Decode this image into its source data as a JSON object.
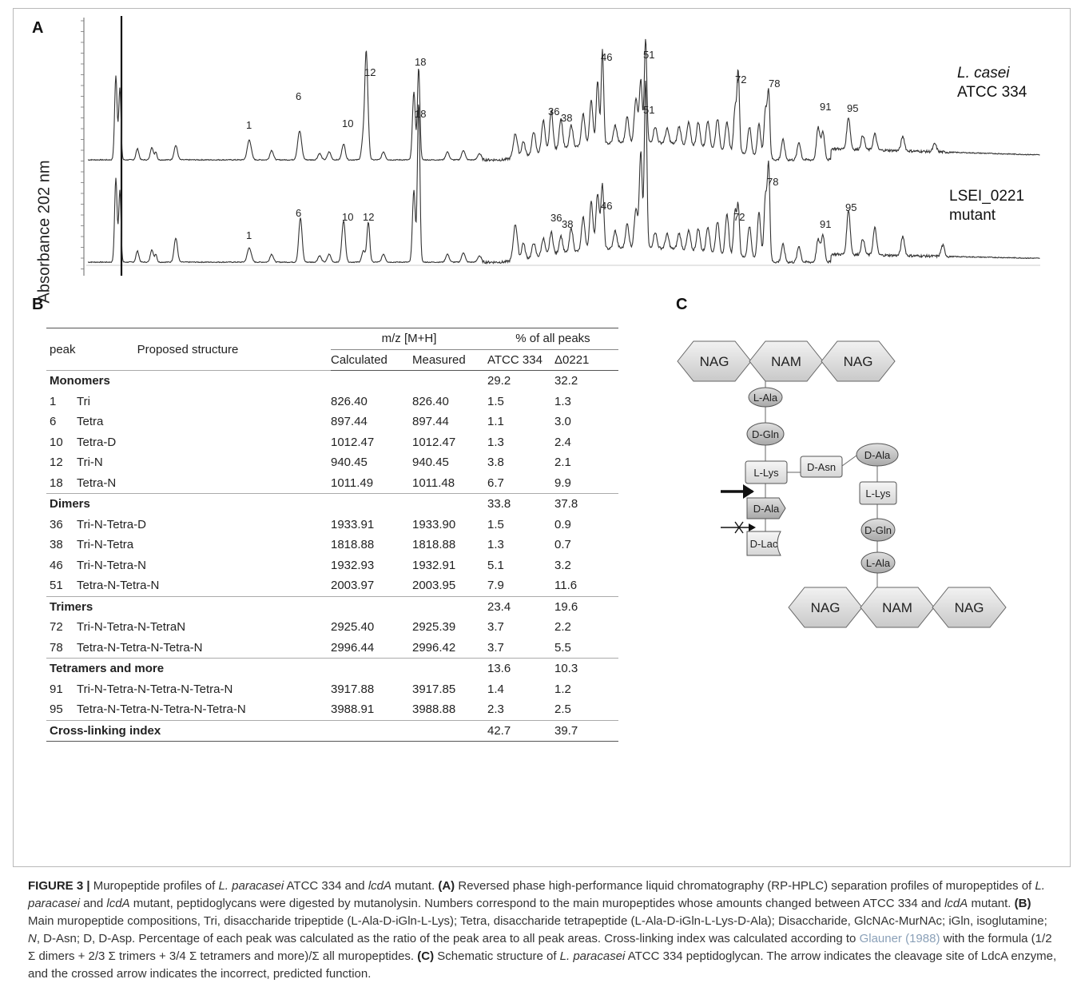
{
  "panels": {
    "a": "A",
    "b": "B",
    "c": "C"
  },
  "chart_data": {
    "type": "line",
    "ylabel": "Absorbance 202 nm",
    "series": [
      {
        "name": "L. casei ATCC 334",
        "name_line1": "L. casei",
        "name_line2": "ATCC 334",
        "peaks": [
          "1",
          "6",
          "10",
          "12",
          "18",
          "36",
          "38",
          "46",
          "51",
          "72",
          "78",
          "91",
          "95"
        ]
      },
      {
        "name": "LSEI_0221 mutant",
        "name_line1": "LSEI_0221",
        "name_line2": "mutant",
        "peaks": [
          "1",
          "6",
          "10",
          "12",
          "18",
          "36",
          "38",
          "46",
          "51",
          "72",
          "78",
          "91",
          "95"
        ]
      }
    ]
  },
  "table": {
    "headers": {
      "peak": "peak",
      "structure": "Proposed structure",
      "mz": "m/z [M+H]",
      "pct": "% of all peaks",
      "calc": "Calculated",
      "meas": "Measured",
      "atcc": "ATCC 334",
      "mut": "Δ0221"
    },
    "rows": [
      {
        "type": "section",
        "label": "Monomers",
        "atcc": "29.2",
        "mut": "32.2"
      },
      {
        "type": "row",
        "peak": "1",
        "structure": "Tri",
        "calc": "826.40",
        "meas": "826.40",
        "atcc": "1.5",
        "mut": "1.3"
      },
      {
        "type": "row",
        "peak": "6",
        "structure": "Tetra",
        "calc": "897.44",
        "meas": "897.44",
        "atcc": "1.1",
        "mut": "3.0"
      },
      {
        "type": "row",
        "peak": "10",
        "structure": "Tetra-D",
        "calc": "1012.47",
        "meas": "1012.47",
        "atcc": "1.3",
        "mut": "2.4"
      },
      {
        "type": "row",
        "peak": "12",
        "structure": "Tri-N",
        "calc": "940.45",
        "meas": "940.45",
        "atcc": "3.8",
        "mut": "2.1"
      },
      {
        "type": "row",
        "peak": "18",
        "structure": "Tetra-N",
        "calc": "1011.49",
        "meas": "1011.48",
        "atcc": "6.7",
        "mut": "9.9"
      },
      {
        "type": "section",
        "label": "Dimers",
        "atcc": "33.8",
        "mut": "37.8"
      },
      {
        "type": "row",
        "peak": "36",
        "structure": "Tri-N-Tetra-D",
        "calc": "1933.91",
        "meas": "1933.90",
        "atcc": "1.5",
        "mut": "0.9"
      },
      {
        "type": "row",
        "peak": "38",
        "structure": "Tri-N-Tetra",
        "calc": "1818.88",
        "meas": "1818.88",
        "atcc": "1.3",
        "mut": "0.7"
      },
      {
        "type": "row",
        "peak": "46",
        "structure": "Tri-N-Tetra-N",
        "calc": "1932.93",
        "meas": "1932.91",
        "atcc": "5.1",
        "mut": "3.2"
      },
      {
        "type": "row",
        "peak": "51",
        "structure": "Tetra-N-Tetra-N",
        "calc": "2003.97",
        "meas": "2003.95",
        "atcc": "7.9",
        "mut": "11.6"
      },
      {
        "type": "section",
        "label": "Trimers",
        "atcc": "23.4",
        "mut": "19.6"
      },
      {
        "type": "row",
        "peak": "72",
        "structure": "Tri-N-Tetra-N-TetraN",
        "calc": "2925.40",
        "meas": "2925.39",
        "atcc": "3.7",
        "mut": "2.2"
      },
      {
        "type": "row",
        "peak": "78",
        "structure": "Tetra-N-Tetra-N-Tetra-N",
        "calc": "2996.44",
        "meas": "2996.42",
        "atcc": "3.7",
        "mut": "5.5"
      },
      {
        "type": "section",
        "label": "Tetramers and more",
        "atcc": "13.6",
        "mut": "10.3"
      },
      {
        "type": "row",
        "peak": "91",
        "structure": "Tri-N-Tetra-N-Tetra-N-Tetra-N",
        "calc": "3917.88",
        "meas": "3917.85",
        "atcc": "1.4",
        "mut": "1.2"
      },
      {
        "type": "row",
        "peak": "95",
        "structure": "Tetra-N-Tetra-N-Tetra-N-Tetra-N",
        "calc": "3988.91",
        "meas": "3988.88",
        "atcc": "2.3",
        "mut": "2.5"
      },
      {
        "type": "section",
        "label": "Cross-linking index",
        "atcc": "42.7",
        "mut": "39.7",
        "last": true
      }
    ]
  },
  "schematic": {
    "top_sugars": [
      "NAG",
      "NAM",
      "NAG"
    ],
    "bottom_sugars": [
      "NAG",
      "NAM",
      "NAG"
    ],
    "left_chain": [
      "L-Ala",
      "D-Gln",
      "L-Lys",
      "D-Ala",
      "D-Lac"
    ],
    "bridge": "D-Asn",
    "right_chain": [
      "D-Ala",
      "L-Lys",
      "D-Gln",
      "L-Ala"
    ]
  },
  "caption": {
    "label": "FIGURE 3 |",
    "t1": " Muropeptide profiles of ",
    "sp1": "L. paracasei",
    "t2": " ATCC 334 and ",
    "g1": "lcdA",
    "t3": " mutant. ",
    "a_label": "(A)",
    "t4": " Reversed phase high-performance liquid chromatography (RP-HPLC) separation profiles of muropeptides of ",
    "sp2": "L. paracasei",
    "t5": " and ",
    "g2": "lcdA",
    "t6": " mutant, peptidoglycans were digested by mutanolysin. Numbers correspond to the main muropeptides whose amounts changed between ATCC 334 and ",
    "g3": "lcdA",
    "t7": " mutant. ",
    "b_label": "(B)",
    "t8": " Main muropeptide compositions, Tri, disaccharide tripeptide (L-Ala-D-iGln-L-Lys); Tetra, disaccharide tetrapeptide (L-Ala-D-iGln-L-Lys-D-Ala); Disaccharide, GlcNAc-MurNAc; iGln, isoglutamine; ",
    "n_it": "N",
    "t9": ", D-Asn; D, D-Asp. Percentage of each peak was calculated as the ratio of the peak area to all peak areas. Cross-linking index was calculated according to ",
    "ref": "Glauner (1988)",
    "t10": " with the formula (1/2 Σ dimers + 2/3 Σ trimers + 3/4 Σ tetramers and more)/Σ all muropeptides. ",
    "c_label": "(C)",
    "t11": " Schematic structure of ",
    "sp3": "L. paracasei",
    "t12": " ATCC 334 peptidoglycan. The arrow indicates the cleavage site of LdcA enzyme, and the crossed arrow indicates the incorrect, predicted function."
  }
}
